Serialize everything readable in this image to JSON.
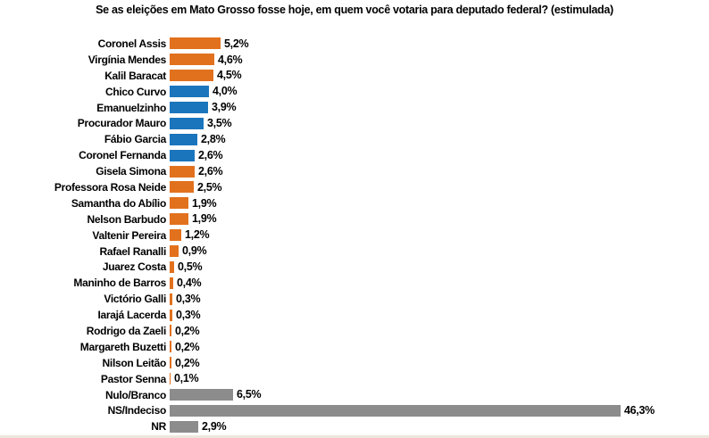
{
  "title": "Se as eleições em Mato Grosso fosse hoje, em quem você votaria para deputado federal? (estimulada)",
  "colors": {
    "orange": "#e2711d",
    "blue": "#1b75bc",
    "gray": "#8c8c8c",
    "bottom_border": "#ece7da",
    "text": "#000000",
    "background": "#ffffff"
  },
  "chart_data": {
    "type": "bar",
    "orientation": "horizontal",
    "title": "Se as eleições em Mato Grosso fosse hoje, em quem você votaria para deputado federal? (estimulada)",
    "xlabel": "",
    "ylabel": "",
    "xlim": [
      0,
      55
    ],
    "grid": false,
    "legend": false,
    "axes_visible": false,
    "value_unit": "%",
    "categories": [
      "Coronel Assis",
      "Virgínia Mendes",
      "Kalil Baracat",
      "Chico Curvo",
      "Emanuelzinho",
      "Procurador Mauro",
      "Fábio Garcia",
      "Coronel Fernanda",
      "Gisela Simona",
      "Professora Rosa Neide",
      "Samantha do Abílio",
      "Nelson Barbudo",
      "Valtenir Pereira",
      "Rafael Ranalli",
      "Juarez Costa",
      "Maninho de Barros",
      "Victório Galli",
      "Iarajá Lacerda",
      "Rodrigo da Zaeli",
      "Margareth Buzetti",
      "Nilson Leitão",
      "Pastor Senna",
      "Nulo/Branco",
      "NS/Indeciso",
      "NR"
    ],
    "values": [
      5.2,
      4.6,
      4.5,
      4.0,
      3.9,
      3.5,
      2.8,
      2.6,
      2.6,
      2.5,
      1.9,
      1.9,
      1.2,
      0.9,
      0.5,
      0.4,
      0.3,
      0.3,
      0.2,
      0.2,
      0.2,
      0.1,
      6.5,
      46.3,
      2.9
    ],
    "value_labels": [
      "5,2%",
      "4,6%",
      "4,5%",
      "4,0%",
      "3,9%",
      "3,5%",
      "2,8%",
      "2,6%",
      "2,6%",
      "2,5%",
      "1,9%",
      "1,9%",
      "1,2%",
      "0,9%",
      "0,5%",
      "0,4%",
      "0,3%",
      "0,3%",
      "0,2%",
      "0,2%",
      "0,2%",
      "0,1%",
      "6,5%",
      "46,3%",
      "2,9%"
    ],
    "bar_colors": [
      "orange",
      "orange",
      "orange",
      "blue",
      "blue",
      "blue",
      "blue",
      "blue",
      "orange",
      "orange",
      "orange",
      "orange",
      "orange",
      "orange",
      "orange",
      "orange",
      "orange",
      "orange",
      "orange",
      "orange",
      "orange",
      "orange",
      "gray",
      "gray",
      "gray"
    ]
  }
}
